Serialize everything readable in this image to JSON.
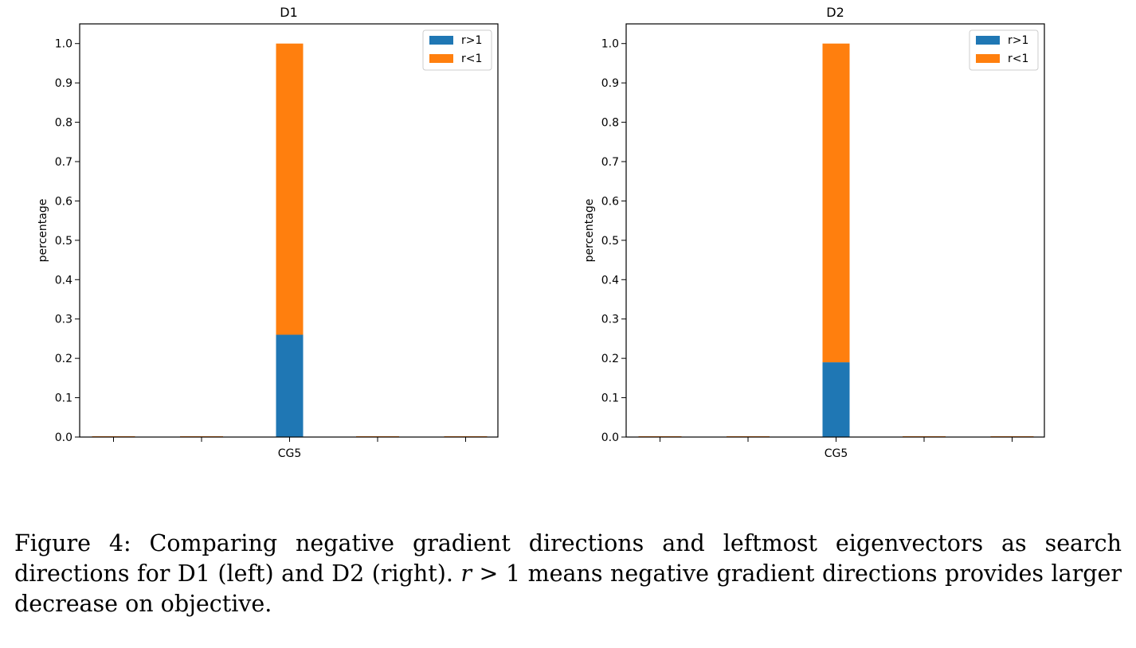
{
  "chart_data": [
    {
      "type": "bar",
      "stacked": true,
      "title": "D1",
      "xlabel": "",
      "ylabel": "percentage",
      "categories": [
        "",
        "",
        "CG5",
        "",
        ""
      ],
      "series": [
        {
          "name": "r>1",
          "color": "#1f77b4",
          "values": [
            0,
            0,
            0.26,
            0,
            0
          ]
        },
        {
          "name": "r<1",
          "color": "#ff7f0e",
          "values": [
            0,
            0,
            0.74,
            0,
            0
          ]
        }
      ],
      "ylim": [
        0,
        1.05
      ],
      "yticks": [
        "0.0",
        "0.1",
        "0.2",
        "0.3",
        "0.4",
        "0.5",
        "0.6",
        "0.7",
        "0.8",
        "0.9",
        "1.0"
      ],
      "legend_position": "top-right",
      "grid": false
    },
    {
      "type": "bar",
      "stacked": true,
      "title": "D2",
      "xlabel": "",
      "ylabel": "percentage",
      "categories": [
        "",
        "",
        "CG5",
        "",
        ""
      ],
      "series": [
        {
          "name": "r>1",
          "color": "#1f77b4",
          "values": [
            0,
            0,
            0.19,
            0,
            0
          ]
        },
        {
          "name": "r<1",
          "color": "#ff7f0e",
          "values": [
            0,
            0,
            0.81,
            0,
            0
          ]
        }
      ],
      "ylim": [
        0,
        1.05
      ],
      "yticks": [
        "0.0",
        "0.1",
        "0.2",
        "0.3",
        "0.4",
        "0.5",
        "0.6",
        "0.7",
        "0.8",
        "0.9",
        "1.0"
      ],
      "legend_position": "top-right",
      "grid": false
    }
  ],
  "caption": {
    "part1": "Figure 4: Comparing negative gradient directions and leftmost eigenvectors as search directions for D1 (left) and D2 (right).",
    "math_r": "r",
    "math_rest": " > 1",
    "part2": " means negative gradient directions provides larger decrease on objective."
  }
}
